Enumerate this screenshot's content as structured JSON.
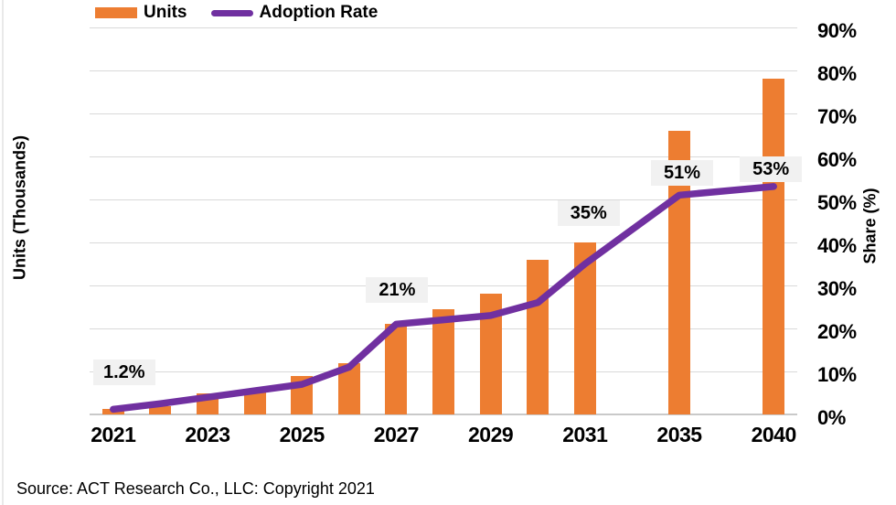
{
  "chart_data": {
    "type": "combo",
    "subtypes": [
      "bar",
      "line"
    ],
    "categories": [
      "2021",
      "2022",
      "2023",
      "2024",
      "2025",
      "2026",
      "2027",
      "2028",
      "2029",
      "2030",
      "2031",
      "2035",
      "2040"
    ],
    "series": [
      {
        "name": "Units",
        "type": "bar",
        "axis": "left",
        "note": "Left axis has no numeric tick labels; bar values estimated against the shared 0-90 gridline scale.",
        "values": [
          1.3,
          2,
          5,
          6,
          9,
          12,
          21,
          24.5,
          28,
          36,
          40,
          66,
          78
        ]
      },
      {
        "name": "Adoption Rate",
        "type": "line",
        "axis": "right",
        "values": [
          1.2,
          2.5,
          4,
          5.5,
          7,
          11,
          21,
          22,
          23,
          26,
          35,
          51,
          53
        ]
      }
    ],
    "point_labels": [
      {
        "series": "Adoption Rate",
        "category": "2021",
        "text": "1.2%"
      },
      {
        "series": "Adoption Rate",
        "category": "2027",
        "text": "21%"
      },
      {
        "series": "Adoption Rate",
        "category": "2031",
        "text": "35%"
      },
      {
        "series": "Adoption Rate",
        "category": "2035",
        "text": "51%"
      },
      {
        "series": "Adoption Rate",
        "category": "2040",
        "text": "53%"
      }
    ],
    "ylabel_left": "Units (Thousands)",
    "ylabel_right": "Share (%)",
    "yaxis_right_ticks": [
      "0%",
      "10%",
      "20%",
      "30%",
      "40%",
      "50%",
      "60%",
      "70%",
      "80%",
      "90%"
    ],
    "yaxis_right_range": [
      0,
      90
    ],
    "grid": "horizontal",
    "xtick_labels": [
      "2021",
      "2023",
      "2025",
      "2027",
      "2029",
      "2031",
      "2035",
      "2040"
    ],
    "x_slot_layout": {
      "total_slots": 15,
      "slots": [
        0,
        1,
        2,
        3,
        4,
        5,
        6,
        7,
        8,
        9,
        10,
        12,
        14
      ],
      "tick_slots": [
        0,
        2,
        4,
        6,
        8,
        10,
        12,
        14
      ]
    },
    "legend": {
      "position": "top-left",
      "items": [
        {
          "label": "Units",
          "marker": "bar-swatch"
        },
        {
          "label": "Adoption Rate",
          "marker": "line-swatch"
        }
      ]
    }
  },
  "colors": {
    "bar": "#ED7D31",
    "line": "#7030A0",
    "gridline": "#D9D9D9",
    "axis_line": "#C9C9C9",
    "label_box_bg": "#F1F1F1",
    "text": "#000000"
  },
  "source_note": "Source: ACT Research Co., LLC:  Copyright 2021"
}
